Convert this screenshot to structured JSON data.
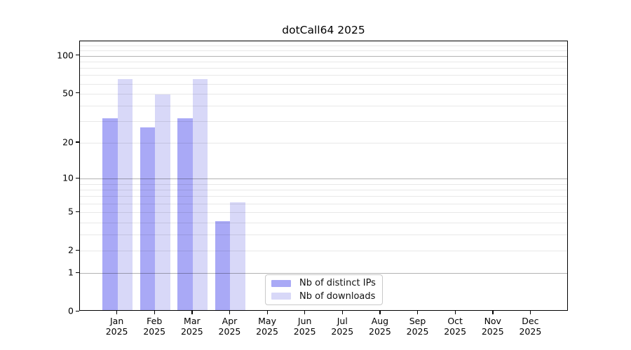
{
  "chart_data": {
    "type": "bar",
    "title": "dotCall64 2025",
    "year": "2025",
    "categories": [
      "Jan",
      "Feb",
      "Mar",
      "Apr",
      "May",
      "Jun",
      "Jul",
      "Aug",
      "Sep",
      "Oct",
      "Nov",
      "Dec"
    ],
    "series": [
      {
        "name": "Nb of distinct IPs",
        "color": "#a9a9f6",
        "values": [
          31,
          26,
          31,
          4,
          0,
          0,
          0,
          0,
          0,
          0,
          0,
          0
        ]
      },
      {
        "name": "Nb of downloads",
        "color": "#d8d8f8",
        "values": [
          64,
          48,
          64,
          6,
          0,
          0,
          0,
          0,
          0,
          0,
          0,
          0
        ]
      }
    ],
    "yscale": "log1p",
    "ylim": [
      0,
      130
    ],
    "yticks": [
      0,
      1,
      2,
      5,
      10,
      20,
      50,
      100
    ],
    "grid": {
      "major": [
        1,
        10,
        100
      ],
      "minor": [
        2,
        3,
        4,
        5,
        6,
        7,
        8,
        9,
        20,
        30,
        40,
        50,
        60,
        70,
        80,
        90,
        110,
        120
      ]
    },
    "legend_position": "lower-center-inside",
    "xlabel": "",
    "ylabel": ""
  }
}
